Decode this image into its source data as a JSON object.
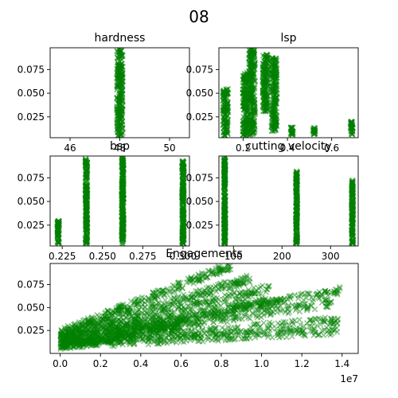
{
  "figure": {
    "suptitle": "08",
    "series_color": "#008000",
    "marker": "x"
  },
  "chart_data": [
    {
      "id": "hardness",
      "type": "scatter",
      "title": "hardness",
      "xlim": [
        45.2,
        50.8
      ],
      "ylim": [
        0.003,
        0.098
      ],
      "xticks": [
        {
          "v": 46,
          "label": "46"
        },
        {
          "v": 48,
          "label": "48"
        },
        {
          "v": 50,
          "label": "50"
        }
      ],
      "yticks": [
        {
          "v": 0.025,
          "label": "0.025"
        },
        {
          "v": 0.05,
          "label": "0.050"
        },
        {
          "v": 0.075,
          "label": "0.075"
        }
      ],
      "clusters": [
        {
          "x": 48,
          "xspread": 0.12,
          "ymin": 0.004,
          "ymax": 0.097
        }
      ]
    },
    {
      "id": "lsp",
      "type": "scatter",
      "title": "lsp",
      "xlim": [
        0.09,
        0.72
      ],
      "ylim": [
        0.003,
        0.098
      ],
      "xticks": [
        {
          "v": 0.2,
          "label": "0.2"
        },
        {
          "v": 0.4,
          "label": "0.4"
        },
        {
          "v": 0.6,
          "label": "0.6"
        }
      ],
      "yticks": [
        {
          "v": 0.025,
          "label": "0.025"
        },
        {
          "v": 0.05,
          "label": "0.050"
        },
        {
          "v": 0.075,
          "label": "0.075"
        }
      ],
      "clusters": [
        {
          "x": 0.12,
          "xspread": 0.012,
          "ymin": 0.005,
          "ymax": 0.055
        },
        {
          "x": 0.21,
          "xspread": 0.012,
          "ymin": 0.005,
          "ymax": 0.072
        },
        {
          "x": 0.24,
          "xspread": 0.014,
          "ymin": 0.005,
          "ymax": 0.097
        },
        {
          "x": 0.3,
          "xspread": 0.012,
          "ymin": 0.03,
          "ymax": 0.092
        },
        {
          "x": 0.34,
          "xspread": 0.012,
          "ymin": 0.01,
          "ymax": 0.088
        },
        {
          "x": 0.42,
          "xspread": 0.005,
          "ymin": 0.006,
          "ymax": 0.014
        },
        {
          "x": 0.52,
          "xspread": 0.005,
          "ymin": 0.006,
          "ymax": 0.014
        },
        {
          "x": 0.69,
          "xspread": 0.005,
          "ymin": 0.006,
          "ymax": 0.02
        }
      ]
    },
    {
      "id": "bsp",
      "type": "scatter",
      "title": "bsp",
      "xlim": [
        0.2175,
        0.304
      ],
      "ylim": [
        0.003,
        0.098
      ],
      "xticks": [
        {
          "v": 0.225,
          "label": "0.225"
        },
        {
          "v": 0.25,
          "label": "0.250"
        },
        {
          "v": 0.275,
          "label": "0.275"
        },
        {
          "v": 0.3,
          "label": "0.300"
        }
      ],
      "yticks": [
        {
          "v": 0.025,
          "label": "0.025"
        },
        {
          "v": 0.05,
          "label": "0.050"
        },
        {
          "v": 0.075,
          "label": "0.075"
        }
      ],
      "clusters": [
        {
          "x": 0.2225,
          "xspread": 0.0006,
          "ymin": 0.005,
          "ymax": 0.03
        },
        {
          "x": 0.24,
          "xspread": 0.0006,
          "ymin": 0.005,
          "ymax": 0.095
        },
        {
          "x": 0.2625,
          "xspread": 0.0006,
          "ymin": 0.005,
          "ymax": 0.097
        },
        {
          "x": 0.3,
          "xspread": 0.0006,
          "ymin": 0.005,
          "ymax": 0.093
        }
      ]
    },
    {
      "id": "cutting-velocity",
      "type": "scatter",
      "title": "cutting velocity",
      "xlim": [
        70,
        357
      ],
      "ylim": [
        0.003,
        0.098
      ],
      "xticks": [
        {
          "v": 100,
          "label": "100"
        },
        {
          "v": 200,
          "label": "200"
        },
        {
          "v": 300,
          "label": "300"
        }
      ],
      "yticks": [
        {
          "v": 0.025,
          "label": "0.025"
        },
        {
          "v": 0.05,
          "label": "0.050"
        },
        {
          "v": 0.075,
          "label": "0.075"
        }
      ],
      "clusters": [
        {
          "x": 82,
          "xspread": 1.5,
          "ymin": 0.005,
          "ymax": 0.097
        },
        {
          "x": 230,
          "xspread": 1.5,
          "ymin": 0.005,
          "ymax": 0.082
        },
        {
          "x": 345,
          "xspread": 1.5,
          "ymin": 0.005,
          "ymax": 0.073
        }
      ]
    },
    {
      "id": "engagements",
      "type": "scatter",
      "title": "Engagements",
      "xlim": [
        -500000,
        14800000
      ],
      "ylim": [
        0.0,
        0.098
      ],
      "xticks": [
        {
          "v": 0,
          "label": "0.0"
        },
        {
          "v": 2000000,
          "label": "0.2"
        },
        {
          "v": 4000000,
          "label": "0.4"
        },
        {
          "v": 6000000,
          "label": "0.6"
        },
        {
          "v": 8000000,
          "label": "0.8"
        },
        {
          "v": 10000000,
          "label": "1.0"
        },
        {
          "v": 12000000,
          "label": "1.2"
        },
        {
          "v": 14000000,
          "label": "1.4"
        }
      ],
      "yticks": [
        {
          "v": 0.025,
          "label": "0.025"
        },
        {
          "v": 0.05,
          "label": "0.050"
        },
        {
          "v": 0.075,
          "label": "0.075"
        }
      ],
      "offset_label": "1e7",
      "trends": [
        {
          "x0": 0,
          "y0": 0.022,
          "x1": 8500000,
          "y1": 0.096
        },
        {
          "x0": 0,
          "y0": 0.02,
          "x1": 9500000,
          "y1": 0.082
        },
        {
          "x0": 0,
          "y0": 0.018,
          "x1": 10500000,
          "y1": 0.072
        },
        {
          "x0": 0,
          "y0": 0.015,
          "x1": 11000000,
          "y1": 0.06
        },
        {
          "x0": 0,
          "y0": 0.014,
          "x1": 13900000,
          "y1": 0.068
        },
        {
          "x0": 0,
          "y0": 0.012,
          "x1": 13500000,
          "y1": 0.055
        },
        {
          "x0": 0,
          "y0": 0.01,
          "x1": 13900000,
          "y1": 0.036
        },
        {
          "x0": 0,
          "y0": 0.009,
          "x1": 13800000,
          "y1": 0.025
        },
        {
          "x0": 0,
          "y0": 0.008,
          "x1": 6000000,
          "y1": 0.03
        }
      ]
    }
  ]
}
